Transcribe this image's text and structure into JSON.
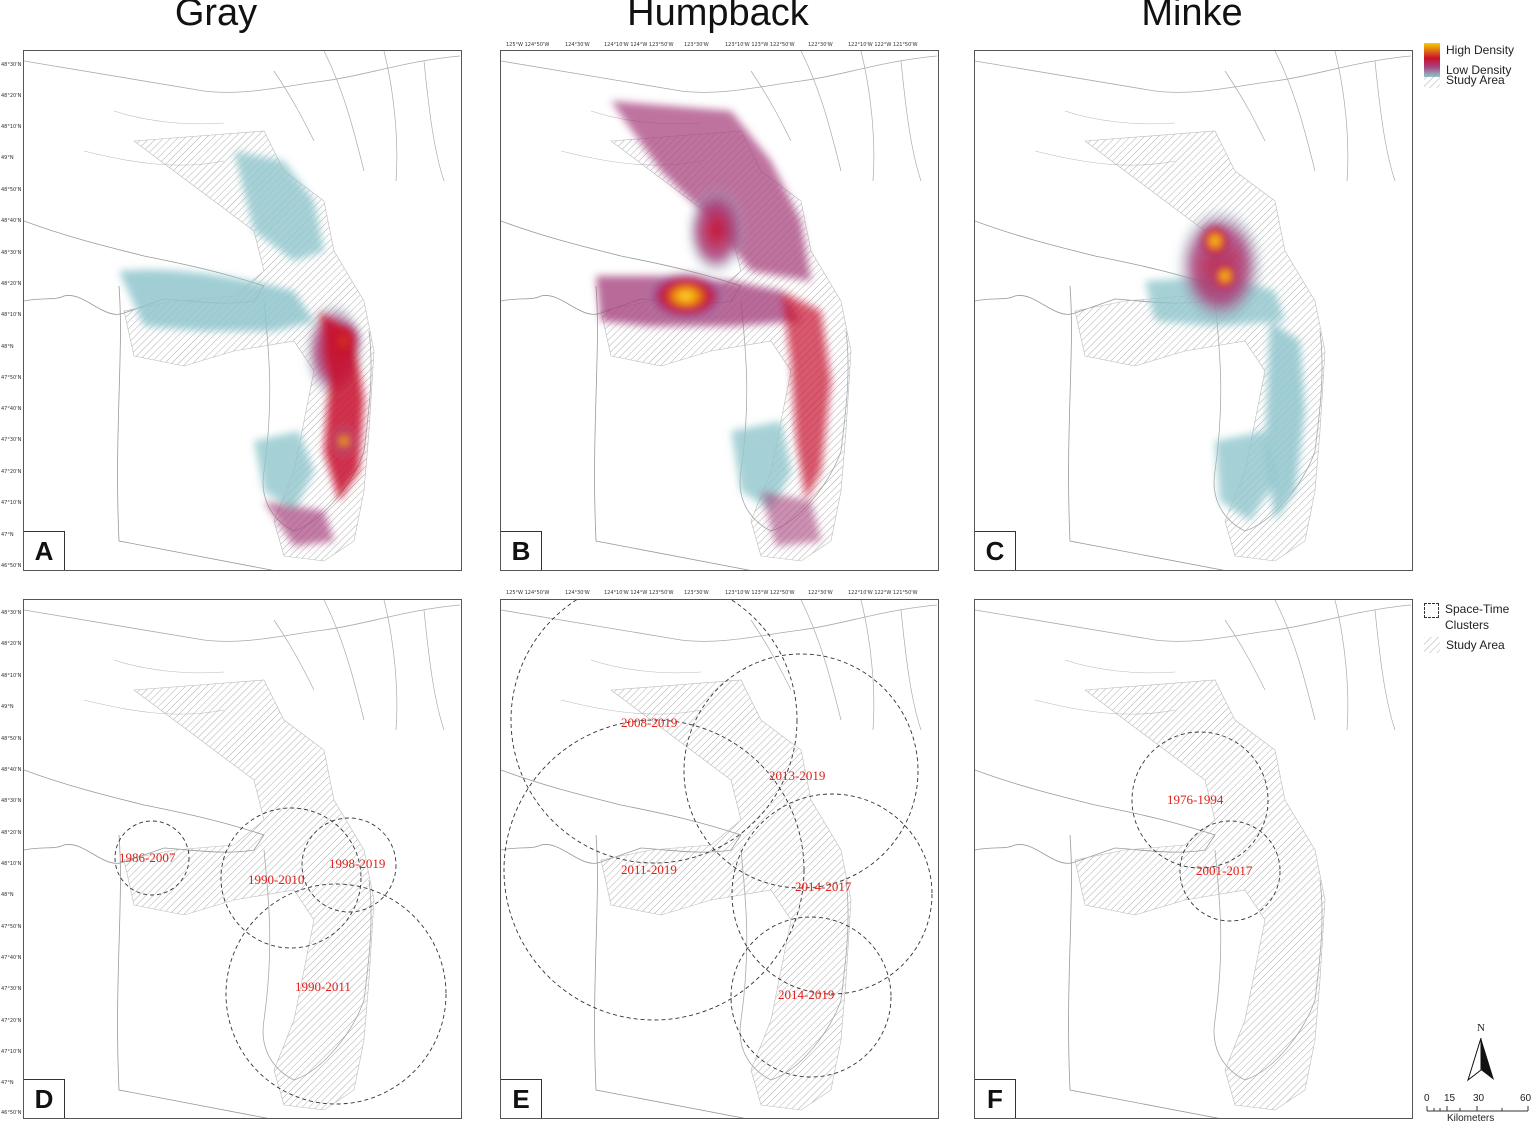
{
  "columns": {
    "gray": "Gray",
    "humpback": "Humpback",
    "minke": "Minke"
  },
  "panels": {
    "a": "A",
    "b": "B",
    "c": "C",
    "d": "D",
    "e": "E",
    "f": "F"
  },
  "lat_ticks": [
    "48°30'N",
    "48°20'N",
    "48°10'N",
    "48°N",
    "47°50'N",
    "47°40'N",
    "47°30'N",
    "47°20'N",
    "47°10'N",
    "47°N",
    "46°50'N"
  ],
  "lat_ticks_full": [
    "48°30'N",
    "48°20'N",
    "48°10'N",
    "49°N",
    "48°50'N",
    "48°40'N",
    "48°30'N",
    "48°20'N",
    "48°10'N",
    "48°N",
    "47°50'N",
    "47°40'N",
    "47°30'N",
    "47°20'N",
    "47°10'N",
    "47°N",
    "46°50'N"
  ],
  "lon_ticks": [
    "125°W 124°50'W",
    "124°30'W",
    "124°10'W 124°W 123°50'W",
    "123°30'W",
    "123°10'W 123°W 122°50'W",
    "122°30'W",
    "122°10'W 122°W 121°50'W"
  ],
  "legend_top": {
    "high": "High Density",
    "low": "Low Density",
    "study": "Study Area"
  },
  "legend_bottom": {
    "clusters": "Space-Time Clusters",
    "study": "Study Area"
  },
  "clusters": {
    "d": [
      "1986-2007",
      "1990-2010",
      "1998-2019",
      "1990-2011"
    ],
    "e": [
      "2008-2019",
      "2013-2019",
      "2011-2019",
      "2014-2017",
      "2014-2019"
    ],
    "f": [
      "1976-1994",
      "2001-2017"
    ]
  },
  "scalebar": {
    "ticks": [
      "0",
      "15",
      "30",
      "60"
    ],
    "unit": "Kilometers",
    "north": "N"
  },
  "colors": {
    "high": "#f5d000",
    "mid": "#c8102e",
    "low": "#8fc6cc",
    "cluster_text": "#e0201a"
  }
}
